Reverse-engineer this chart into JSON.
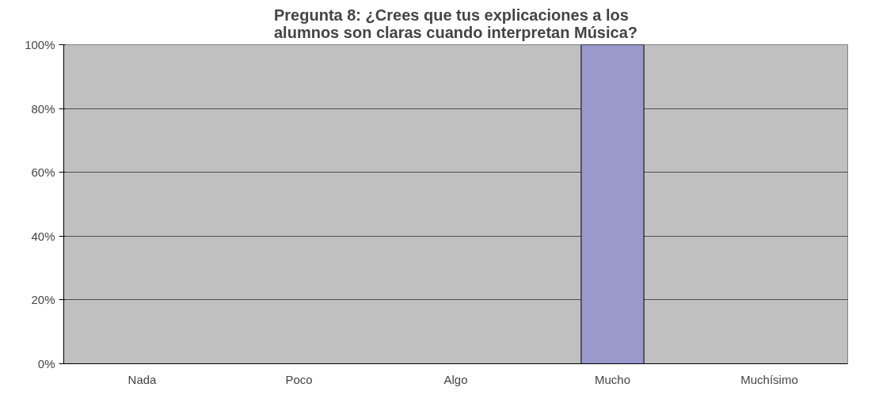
{
  "chart_data": {
    "type": "bar",
    "title": "Pregunta 8: ¿Crees que tus explicaciones a los alumnos son claras cuando interpretan Música?",
    "categories": [
      "Nada",
      "Poco",
      "Algo",
      "Mucho",
      "Muchísimo"
    ],
    "values": [
      0,
      0,
      0,
      100,
      0
    ],
    "color": "#9999cc",
    "ylim": [
      0,
      100
    ],
    "yticks": [
      {
        "value": 0,
        "label": "0%"
      },
      {
        "value": 20,
        "label": "20%"
      },
      {
        "value": 40,
        "label": "40%"
      },
      {
        "value": 60,
        "label": "60%"
      },
      {
        "value": 80,
        "label": "80%"
      },
      {
        "value": 100,
        "label": "100%"
      }
    ],
    "grid": "y"
  }
}
